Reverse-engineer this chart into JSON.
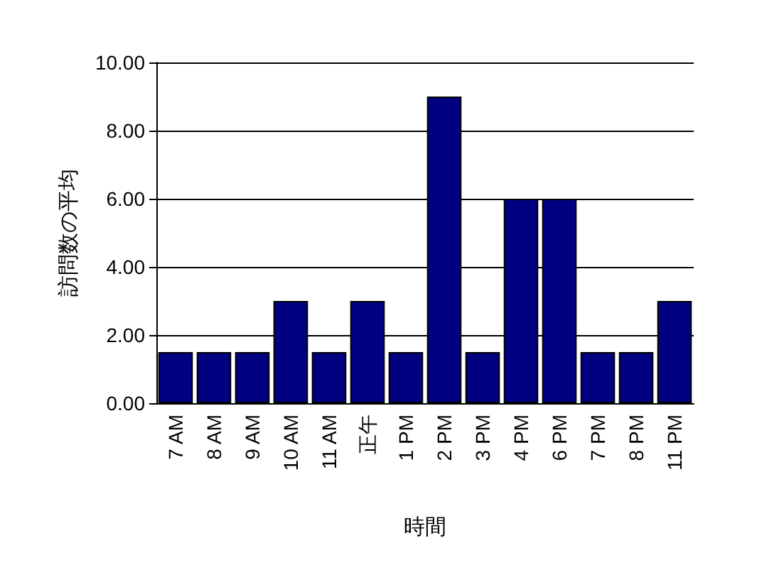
{
  "chart_data": {
    "type": "bar",
    "xlabel": "時間",
    "ylabel": "訪問数の平均",
    "categories": [
      "7 AM",
      "8 AM",
      "9 AM",
      "10 AM",
      "11 AM",
      "正午",
      "1 PM",
      "2 PM",
      "3 PM",
      "4 PM",
      "6 PM",
      "7 PM",
      "8 PM",
      "11 PM"
    ],
    "values": [
      1.5,
      1.5,
      1.5,
      3,
      1.5,
      3,
      1.5,
      9,
      1.5,
      6,
      6,
      1.5,
      1.5,
      3
    ],
    "color": "#000080",
    "ylim": [
      0,
      10
    ],
    "yticks": [
      {
        "value": 0,
        "label": "0.00"
      },
      {
        "value": 2,
        "label": "2.00"
      },
      {
        "value": 4,
        "label": "4.00"
      },
      {
        "value": 6,
        "label": "6.00"
      },
      {
        "value": 8,
        "label": "8.00"
      },
      {
        "value": 10,
        "label": "10.00"
      }
    ],
    "grid": "y"
  }
}
